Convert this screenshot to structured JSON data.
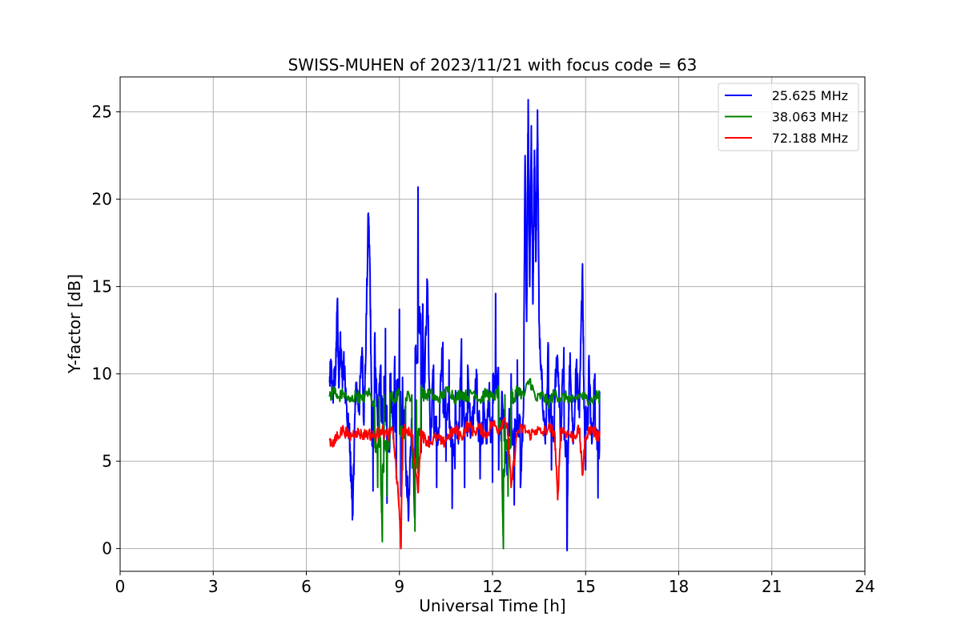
{
  "chart_data": {
    "type": "line",
    "title": "SWISS-MUHEN of 2023/11/21 with focus code = 63",
    "xlabel": "Universal Time [h]",
    "ylabel": "Y-factor [dB]",
    "xlim": [
      0,
      24
    ],
    "ylim": [
      -1.3,
      27
    ],
    "xticks": [
      0,
      3,
      6,
      9,
      12,
      15,
      18,
      21,
      24
    ],
    "yticks": [
      0,
      5,
      10,
      15,
      20,
      25
    ],
    "grid": true,
    "legend_position": "top-right",
    "series": [
      {
        "name": "25.625 MHz",
        "color": "#0000ff",
        "x": [
          6.75,
          6.8,
          6.85,
          6.9,
          6.95,
          7.0,
          7.05,
          7.1,
          7.15,
          7.2,
          7.3,
          7.4,
          7.45,
          7.5,
          7.55,
          7.6,
          7.7,
          7.8,
          7.85,
          7.9,
          8.0,
          8.05,
          8.1,
          8.15,
          8.2,
          8.3,
          8.4,
          8.5,
          8.55,
          8.6,
          8.7,
          8.8,
          8.85,
          8.9,
          9.0,
          9.05,
          9.1,
          9.2,
          9.3,
          9.4,
          9.5,
          9.6,
          9.7,
          9.75,
          9.8,
          9.9,
          10.0,
          10.1,
          10.2,
          10.3,
          10.4,
          10.5,
          10.6,
          10.7,
          10.8,
          10.9,
          11.0,
          11.1,
          11.2,
          11.3,
          11.4,
          11.5,
          11.6,
          11.7,
          11.8,
          11.9,
          12.0,
          12.1,
          12.2,
          12.3,
          12.4,
          12.5,
          12.6,
          12.7,
          12.8,
          12.9,
          13.0,
          13.05,
          13.1,
          13.15,
          13.2,
          13.25,
          13.3,
          13.35,
          13.4,
          13.45,
          13.5,
          13.6,
          13.7,
          13.8,
          13.9,
          14.0,
          14.1,
          14.2,
          14.3,
          14.4,
          14.45,
          14.5,
          14.6,
          14.7,
          14.8,
          14.9,
          14.95,
          15.0,
          15.1,
          15.2,
          15.3,
          15.4,
          15.45
        ],
        "values": [
          9.5,
          10.3,
          8.8,
          9.6,
          10.2,
          14.2,
          9.2,
          12.4,
          9.8,
          10.7,
          8.2,
          5.5,
          4.0,
          1.9,
          6.5,
          9.5,
          8.0,
          11.5,
          7.5,
          10.0,
          19.2,
          16.0,
          9.0,
          3.3,
          12.0,
          7.0,
          10.5,
          5.5,
          12.6,
          2.6,
          10.0,
          6.5,
          11.0,
          4.0,
          13.7,
          3.0,
          9.8,
          5.0,
          2.1,
          7.5,
          2.0,
          20.7,
          5.5,
          14.0,
          9.0,
          15.3,
          6.0,
          10.5,
          3.5,
          8.7,
          11.8,
          5.0,
          10.8,
          2.3,
          8.5,
          6.0,
          12.0,
          3.5,
          10.5,
          6.5,
          8.0,
          10.0,
          4.0,
          9.0,
          6.0,
          9.5,
          3.8,
          14.6,
          4.5,
          9.0,
          6.0,
          4.5,
          10.0,
          2.5,
          10.8,
          3.5,
          8.0,
          22.5,
          13.0,
          25.7,
          15.0,
          24.2,
          14.0,
          22.8,
          16.5,
          25.1,
          13.0,
          9.5,
          6.0,
          11.6,
          4.5,
          9.0,
          10.8,
          6.5,
          11.5,
          0.0,
          7.5,
          11.2,
          6.0,
          10.5,
          7.5,
          16.3,
          8.0,
          4.5,
          10.7,
          6.0,
          10.0,
          2.9,
          9.0
        ],
        "peaks_range": [
          0,
          25.7
        ]
      },
      {
        "name": "38.063 MHz",
        "color": "#008000",
        "x": [
          6.75,
          6.9,
          7.0,
          7.2,
          7.4,
          7.6,
          7.8,
          8.0,
          8.2,
          8.3,
          8.35,
          8.4,
          8.45,
          8.5,
          8.6,
          8.7,
          8.8,
          9.0,
          9.1,
          9.2,
          9.4,
          9.5,
          9.55,
          9.6,
          9.7,
          9.8,
          10.0,
          10.2,
          10.4,
          10.6,
          10.8,
          11.0,
          11.2,
          11.4,
          11.6,
          11.8,
          12.0,
          12.2,
          12.3,
          12.35,
          12.4,
          12.5,
          12.6,
          12.7,
          12.8,
          13.0,
          13.2,
          13.4,
          13.6,
          13.8,
          14.0,
          14.2,
          14.4,
          14.6,
          14.8,
          15.0,
          15.2,
          15.4,
          15.45
        ],
        "values": [
          8.7,
          9.1,
          8.6,
          8.9,
          8.4,
          8.8,
          8.5,
          9.0,
          8.2,
          3.5,
          8.7,
          4.0,
          0.4,
          8.8,
          3.0,
          8.9,
          8.5,
          8.9,
          4.5,
          8.6,
          8.8,
          1.0,
          8.5,
          4.3,
          9.2,
          8.7,
          8.9,
          8.5,
          8.8,
          9.1,
          8.6,
          8.9,
          8.7,
          9.0,
          8.5,
          8.9,
          8.6,
          9.0,
          5.0,
          0.0,
          8.8,
          3.0,
          9.0,
          8.4,
          9.2,
          8.7,
          9.7,
          8.5,
          8.8,
          8.3,
          8.9,
          8.6,
          8.7,
          8.4,
          8.8,
          8.6,
          8.5,
          8.8,
          8.6
        ]
      },
      {
        "name": "72.188 MHz",
        "color": "#ff0000",
        "x": [
          6.75,
          6.9,
          7.0,
          7.2,
          7.4,
          7.6,
          7.8,
          8.0,
          8.2,
          8.4,
          8.6,
          8.8,
          9.0,
          9.05,
          9.1,
          9.2,
          9.4,
          9.6,
          9.7,
          9.8,
          10.0,
          10.2,
          10.4,
          10.6,
          10.8,
          11.0,
          11.2,
          11.4,
          11.6,
          11.8,
          12.0,
          12.2,
          12.4,
          12.5,
          12.6,
          12.8,
          13.0,
          13.2,
          13.4,
          13.6,
          13.8,
          14.0,
          14.1,
          14.2,
          14.4,
          14.6,
          14.8,
          14.9,
          15.0,
          15.2,
          15.4,
          15.45
        ],
        "values": [
          6.2,
          6.0,
          6.5,
          6.8,
          6.4,
          6.7,
          6.5,
          6.6,
          6.4,
          6.8,
          6.5,
          6.7,
          2.1,
          0.0,
          6.5,
          6.9,
          6.6,
          3.2,
          6.8,
          6.3,
          6.1,
          6.4,
          6.0,
          6.5,
          6.8,
          6.4,
          7.1,
          6.7,
          6.9,
          6.5,
          7.2,
          6.8,
          7.5,
          6.6,
          3.5,
          6.7,
          6.9,
          6.5,
          6.8,
          6.6,
          6.9,
          6.7,
          2.8,
          6.9,
          6.6,
          6.4,
          6.8,
          4.2,
          6.5,
          6.9,
          6.4,
          6.7
        ]
      }
    ]
  }
}
